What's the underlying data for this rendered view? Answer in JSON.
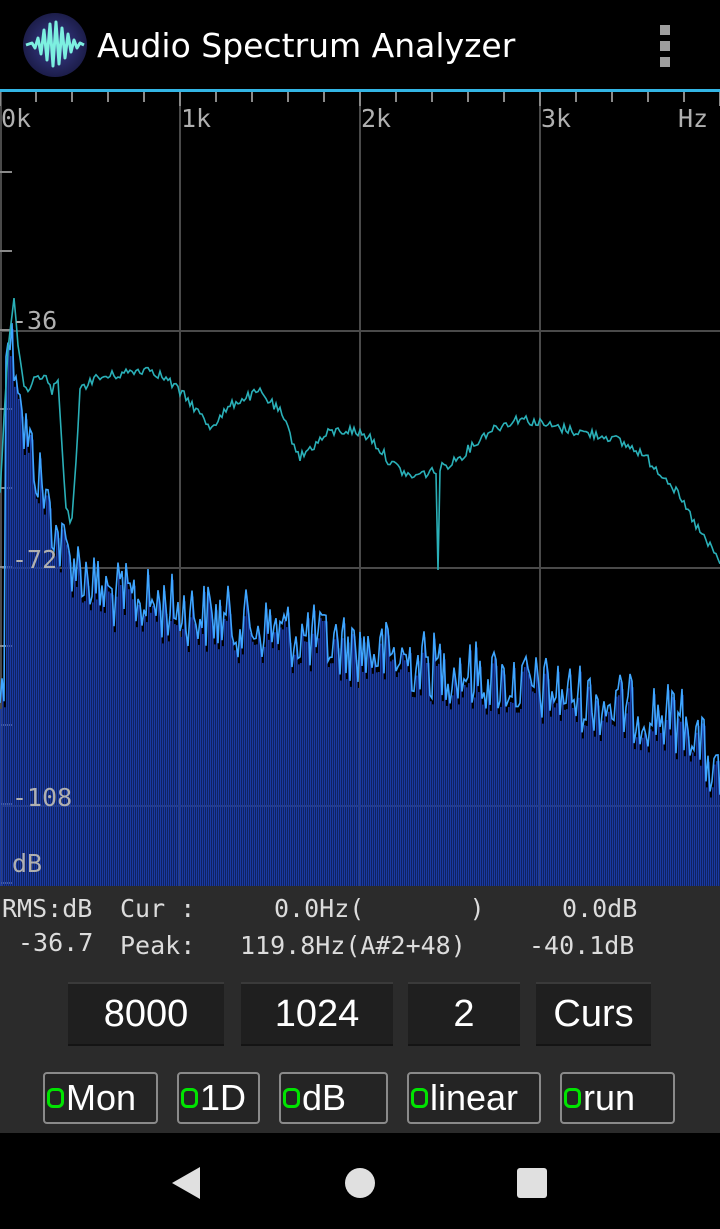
{
  "app": {
    "title": "Audio Spectrum Analyzer",
    "accent_color": "#33b5e5",
    "logo_icon": "waveform-logo-icon",
    "menu_icon": "overflow-menu-icon"
  },
  "spectrum": {
    "x_axis_labels": [
      "0k",
      "1k",
      "2k",
      "3k",
      "Hz"
    ],
    "y_axis_labels": [
      "-36",
      "-72",
      "-108",
      "dB"
    ],
    "x_range_hz": [
      0,
      4000
    ],
    "y_range_db": [
      -150,
      -5
    ],
    "colors": {
      "bars": "#1a3aa0",
      "live_trace": "#3fa6ff",
      "peak_hold_trace": "#2ab0b8",
      "grid": "#4a4a4a",
      "labels": "#b0b0b0"
    }
  },
  "readout": {
    "rms_label": "RMS:dB",
    "rms_value": "-36.7",
    "cursor_label": "Cur :",
    "cursor_freq": "0.0Hz(       )",
    "cursor_db": "0.0dB",
    "peak_label": "Peak:",
    "peak_freq": "119.8Hz(A#2+48)",
    "peak_db": "-40.1dB"
  },
  "settings": {
    "sample_rate": "8000",
    "fft_length": "1024",
    "average": "2",
    "cursor_button": "Curs"
  },
  "toggles": [
    {
      "label": "Mon"
    },
    {
      "label": "1D"
    },
    {
      "label": "dB"
    },
    {
      "label": "linear"
    },
    {
      "label": "run"
    }
  ],
  "toggle_indicator_color": "#00e400",
  "navigation": {
    "back_icon": "back-triangle-icon",
    "home_icon": "home-circle-icon",
    "recents_icon": "recents-square-icon"
  }
}
